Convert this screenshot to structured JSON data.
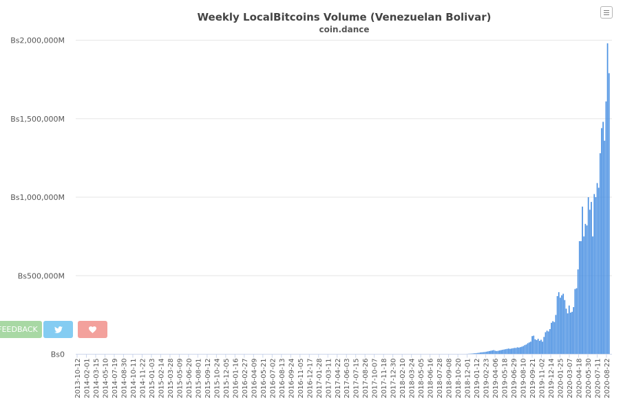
{
  "chart_data": {
    "type": "bar",
    "title": "Weekly LocalBitcoins Volume (Venezuelan Bolivar)",
    "subtitle": "coin.dance",
    "xlabel": "",
    "ylabel": "",
    "ylim": [
      0,
      2000000000
    ],
    "grid": true,
    "legend": "none",
    "y_ticks": [
      {
        "value": 0,
        "label": "Bs0"
      },
      {
        "value": 500000000,
        "label": "Bs500,000M"
      },
      {
        "value": 1000000000,
        "label": "Bs1,000,000M"
      },
      {
        "value": 1500000000,
        "label": "Bs1,500,000M"
      },
      {
        "value": 2000000000,
        "label": "Bs2,000,000M"
      }
    ],
    "x_tick_labels": [
      "2013-10-12",
      "2014-02-01",
      "2014-03-15",
      "2014-05-10",
      "2014-07-19",
      "2014-08-30",
      "2014-10-11",
      "2014-11-22",
      "2015-01-03",
      "2015-02-14",
      "2015-03-28",
      "2015-05-09",
      "2015-06-20",
      "2015-08-01",
      "2015-09-12",
      "2015-10-24",
      "2015-12-05",
      "2016-01-16",
      "2016-02-27",
      "2016-04-09",
      "2016-05-21",
      "2016-07-02",
      "2016-08-13",
      "2016-09-24",
      "2016-11-05",
      "2016-12-17",
      "2017-01-28",
      "2017-03-11",
      "2017-04-22",
      "2017-06-03",
      "2017-07-15",
      "2017-08-26",
      "2017-10-07",
      "2017-11-18",
      "2017-12-30",
      "2018-02-10",
      "2018-03-24",
      "2018-05-05",
      "2018-06-16",
      "2018-07-28",
      "2018-09-08",
      "2018-10-20",
      "2018-12-01",
      "2019-01-12",
      "2019-02-23",
      "2019-04-06",
      "2019-05-18",
      "2019-06-29",
      "2019-08-10",
      "2019-09-21",
      "2019-11-02",
      "2019-12-14",
      "2020-01-25",
      "2020-03-07",
      "2020-04-18",
      "2020-05-30",
      "2020-07-11",
      "2020-08-22"
    ],
    "x_range": [
      "2013-10-12",
      "2020-09-26"
    ],
    "y_unit_note": "values in Bs millions",
    "series": [
      {
        "color": "#4a90e2",
        "points": [
          [
            "2018-09-29",
            0.3
          ],
          [
            "2018-10-06",
            0.5
          ],
          [
            "2018-10-13",
            0.8
          ],
          [
            "2018-10-20",
            1.2
          ],
          [
            "2018-10-27",
            1.5
          ],
          [
            "2018-11-03",
            2
          ],
          [
            "2018-11-10",
            2.5
          ],
          [
            "2018-11-17",
            3
          ],
          [
            "2018-11-24",
            3.5
          ],
          [
            "2018-12-01",
            4
          ],
          [
            "2018-12-08",
            5
          ],
          [
            "2018-12-15",
            6
          ],
          [
            "2018-12-22",
            7
          ],
          [
            "2018-12-29",
            8
          ],
          [
            "2019-01-05",
            9
          ],
          [
            "2019-01-12",
            11
          ],
          [
            "2019-01-19",
            12
          ],
          [
            "2019-01-26",
            13
          ],
          [
            "2019-02-02",
            14
          ],
          [
            "2019-02-09",
            16
          ],
          [
            "2019-02-16",
            18
          ],
          [
            "2019-02-23",
            20
          ],
          [
            "2019-03-02",
            22
          ],
          [
            "2019-03-09",
            24
          ],
          [
            "2019-03-16",
            26
          ],
          [
            "2019-03-23",
            22
          ],
          [
            "2019-03-30",
            20
          ],
          [
            "2019-04-06",
            22
          ],
          [
            "2019-04-13",
            24
          ],
          [
            "2019-04-20",
            26
          ],
          [
            "2019-04-27",
            28
          ],
          [
            "2019-05-04",
            30
          ],
          [
            "2019-05-11",
            32
          ],
          [
            "2019-05-18",
            34
          ],
          [
            "2019-05-25",
            36
          ],
          [
            "2019-06-01",
            34
          ],
          [
            "2019-06-08",
            36
          ],
          [
            "2019-06-15",
            38
          ],
          [
            "2019-06-22",
            40
          ],
          [
            "2019-06-29",
            40
          ],
          [
            "2019-07-06",
            44
          ],
          [
            "2019-07-13",
            42
          ],
          [
            "2019-07-20",
            45
          ],
          [
            "2019-07-27",
            48
          ],
          [
            "2019-08-03",
            52
          ],
          [
            "2019-08-10",
            58
          ],
          [
            "2019-08-17",
            62
          ],
          [
            "2019-08-24",
            70
          ],
          [
            "2019-08-31",
            75
          ],
          [
            "2019-09-07",
            80
          ],
          [
            "2019-09-14",
            115
          ],
          [
            "2019-09-21",
            118
          ],
          [
            "2019-09-28",
            95
          ],
          [
            "2019-10-05",
            90
          ],
          [
            "2019-10-12",
            98
          ],
          [
            "2019-10-19",
            85
          ],
          [
            "2019-10-26",
            92
          ],
          [
            "2019-11-02",
            80
          ],
          [
            "2019-11-09",
            110
          ],
          [
            "2019-11-16",
            140
          ],
          [
            "2019-11-23",
            150
          ],
          [
            "2019-11-30",
            145
          ],
          [
            "2019-12-07",
            160
          ],
          [
            "2019-12-14",
            200
          ],
          [
            "2019-12-21",
            210
          ],
          [
            "2019-12-28",
            205
          ],
          [
            "2020-01-04",
            250
          ],
          [
            "2020-01-11",
            370
          ],
          [
            "2020-01-18",
            395
          ],
          [
            "2020-01-25",
            360
          ],
          [
            "2020-02-01",
            375
          ],
          [
            "2020-02-08",
            385
          ],
          [
            "2020-02-15",
            345
          ],
          [
            "2020-02-22",
            290
          ],
          [
            "2020-02-29",
            260
          ],
          [
            "2020-03-07",
            310
          ],
          [
            "2020-03-14",
            265
          ],
          [
            "2020-03-21",
            270
          ],
          [
            "2020-03-28",
            300
          ],
          [
            "2020-04-04",
            415
          ],
          [
            "2020-04-11",
            420
          ],
          [
            "2020-04-18",
            540
          ],
          [
            "2020-04-25",
            720
          ],
          [
            "2020-05-02",
            720
          ],
          [
            "2020-05-09",
            940
          ],
          [
            "2020-05-16",
            750
          ],
          [
            "2020-05-23",
            830
          ],
          [
            "2020-05-30",
            820
          ],
          [
            "2020-06-06",
            1000
          ],
          [
            "2020-06-13",
            920
          ],
          [
            "2020-06-20",
            970
          ],
          [
            "2020-06-27",
            750
          ],
          [
            "2020-07-04",
            1020
          ],
          [
            "2020-07-11",
            1000
          ],
          [
            "2020-07-18",
            1090
          ],
          [
            "2020-07-25",
            1060
          ],
          [
            "2020-08-01",
            1280
          ],
          [
            "2020-08-08",
            1440
          ],
          [
            "2020-08-15",
            1480
          ],
          [
            "2020-08-22",
            1360
          ],
          [
            "2020-08-29",
            1610
          ],
          [
            "2020-09-05",
            1980
          ],
          [
            "2020-09-12",
            1790
          ]
        ]
      }
    ]
  },
  "buttons": {
    "feedback_label": "FEEDBACK",
    "twitter_icon": "twitter-bird-icon",
    "heart_icon": "heart-icon",
    "menu_icon": "hamburger-menu-icon"
  }
}
